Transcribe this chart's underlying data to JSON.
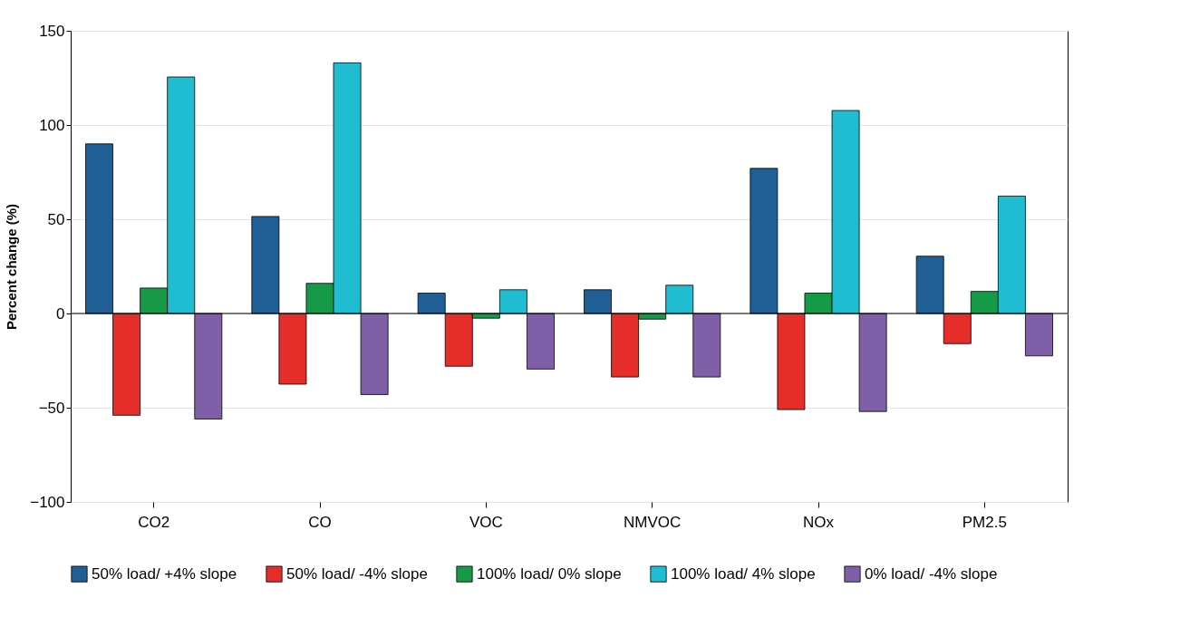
{
  "chart_data": {
    "type": "bar",
    "ylabel": "Percent change (%)",
    "categories": [
      "CO2",
      "CO",
      "VOC",
      "NMVOC",
      "NOx",
      "PM2.5"
    ],
    "series": [
      {
        "name": "50% load/ +4% slope",
        "color": "#1f5f96",
        "values": [
          90,
          51.5,
          10.8,
          12.6,
          77,
          30.4
        ]
      },
      {
        "name": "50% load/ -4% slope",
        "color": "#e52d2a",
        "values": [
          -54,
          -37.5,
          -28,
          -33.7,
          -51,
          -16
        ]
      },
      {
        "name": "100% load/ 0% slope",
        "color": "#169a48",
        "values": [
          13.5,
          16,
          -2.5,
          -3,
          10.8,
          11.7
        ]
      },
      {
        "name": "100% load/ 4% slope",
        "color": "#1fbcd2",
        "values": [
          125.5,
          133,
          12.6,
          15,
          107.7,
          62.3
        ]
      },
      {
        "name": "0% load/ -4% slope",
        "color": "#7f5fa8",
        "values": [
          -56,
          -43,
          -29.5,
          -33.7,
          -52,
          -22.5
        ]
      }
    ],
    "ylim": [
      -100,
      150
    ],
    "yticks": [
      -100,
      -50,
      0,
      50,
      100,
      150
    ],
    "grid": "y",
    "legend": "bottom",
    "ref_lines": [
      {
        "axis": "y",
        "value": 0,
        "color": "#000000"
      }
    ]
  }
}
